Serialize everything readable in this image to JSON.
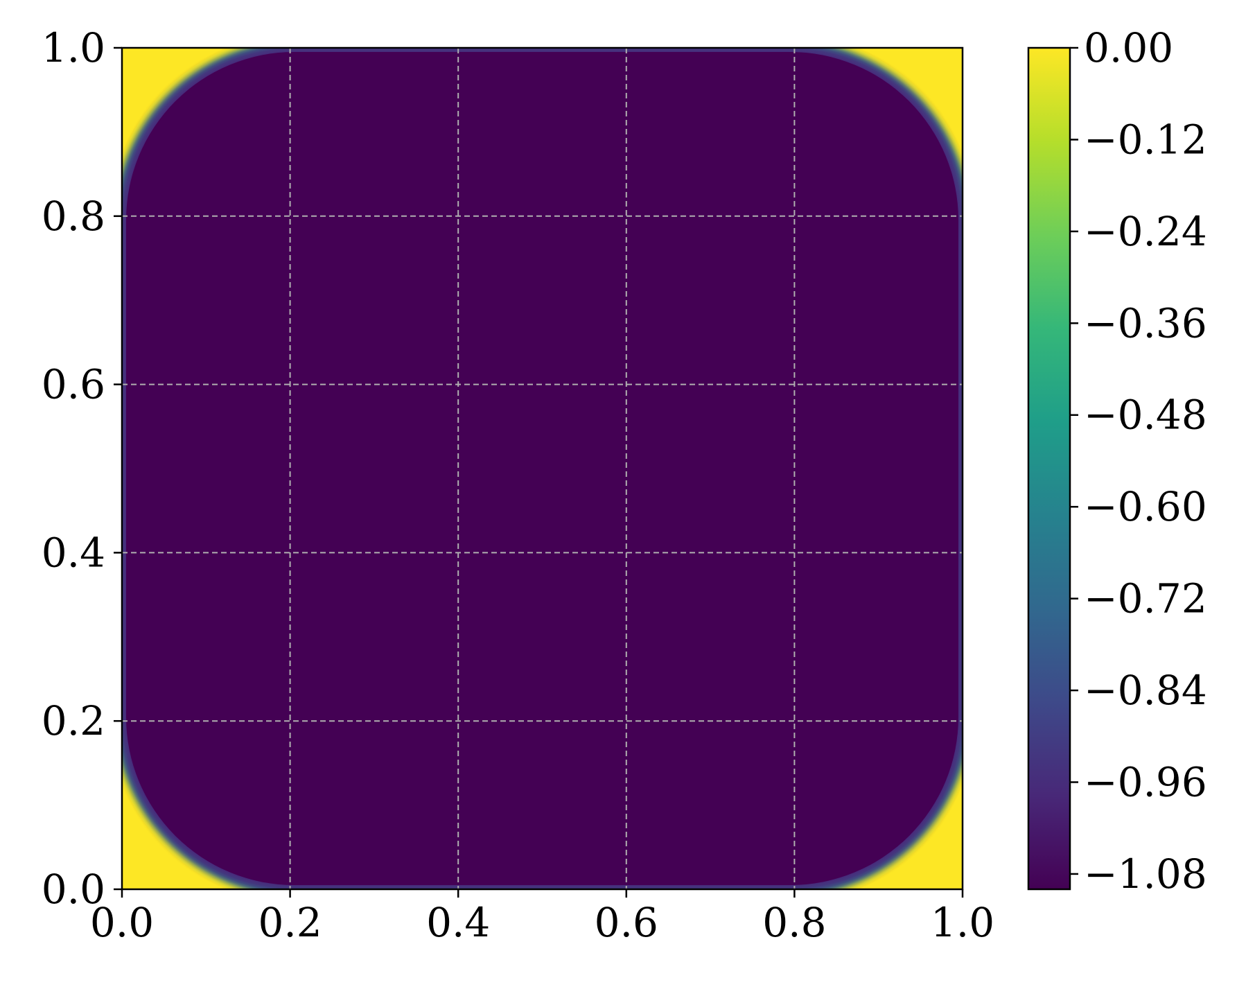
{
  "chart_data": {
    "type": "heatmap",
    "title": "",
    "xlabel": "",
    "ylabel": "",
    "xlim": [
      0.0,
      1.0
    ],
    "ylim": [
      0.0,
      1.0
    ],
    "x_ticks": [
      "0.0",
      "0.2",
      "0.4",
      "0.6",
      "0.8",
      "1.0"
    ],
    "y_ticks": [
      "0.0",
      "0.2",
      "0.4",
      "0.6",
      "0.8",
      "1.0"
    ],
    "grid": true,
    "field": {
      "description_shape": "rounded-square",
      "inner_value": -1.1,
      "outer_value": 0.0,
      "half_width": 0.5,
      "corner_radius": 0.2,
      "transition_width": 0.03
    },
    "colorbar": {
      "colormap": "viridis",
      "range": [
        -1.1,
        0.0
      ],
      "ticks": [
        {
          "value": 0.0,
          "label": "0.00"
        },
        {
          "value": -0.12,
          "label": "−0.12"
        },
        {
          "value": -0.24,
          "label": "−0.24"
        },
        {
          "value": -0.36,
          "label": "−0.36"
        },
        {
          "value": -0.48,
          "label": "−0.48"
        },
        {
          "value": -0.6,
          "label": "−0.60"
        },
        {
          "value": -0.72,
          "label": "−0.72"
        },
        {
          "value": -0.84,
          "label": "−0.84"
        },
        {
          "value": -0.96,
          "label": "−0.96"
        },
        {
          "value": -1.08,
          "label": "−1.08"
        }
      ],
      "colors": [
        "#440154",
        "#482878",
        "#3e4989",
        "#31688e",
        "#26828e",
        "#1f9e89",
        "#35b779",
        "#6ece58",
        "#b5de2b",
        "#fde725"
      ]
    }
  }
}
